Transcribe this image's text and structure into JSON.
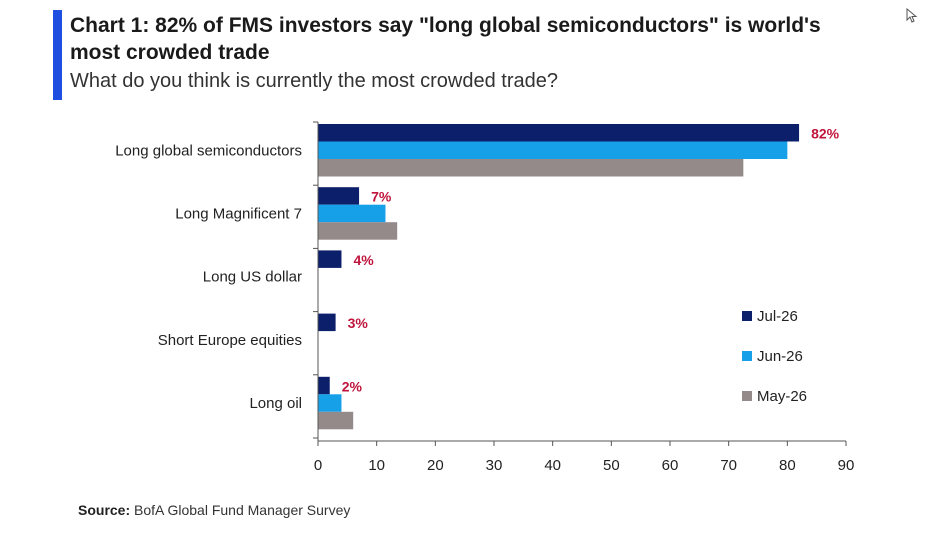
{
  "header": {
    "title": "Chart 1: 82% of FMS investors say \"long global semiconductors\" is world's most crowded trade",
    "subtitle": "What do you think is currently the most crowded trade?"
  },
  "footer": {
    "source_label": "Source:",
    "source_text": "BofA Global Fund Manager Survey"
  },
  "colors": {
    "accent": "#1f4fe0",
    "label_red": "#c0143c"
  },
  "chart_data": {
    "type": "bar",
    "orientation": "horizontal",
    "categories": [
      "Long global semiconductors",
      "Long Magnificent 7",
      "Long US dollar",
      "Short Europe equities",
      "Long oil"
    ],
    "series": [
      {
        "name": "Jul-26",
        "color": "#0c1f6b",
        "values": [
          82,
          7,
          4,
          3,
          2
        ]
      },
      {
        "name": "Jun-26",
        "color": "#16a0e8",
        "values": [
          80,
          11.5,
          null,
          null,
          4
        ]
      },
      {
        "name": "May-26",
        "color": "#948a8a",
        "values": [
          72.5,
          13.5,
          null,
          null,
          6
        ]
      }
    ],
    "data_labels": [
      "82%",
      "7%",
      "4%",
      "3%",
      "2%"
    ],
    "xlim": [
      0,
      90
    ],
    "xticks": [
      0,
      10,
      20,
      30,
      40,
      50,
      60,
      70,
      80,
      90
    ],
    "legend_position": "right",
    "grid": false
  }
}
